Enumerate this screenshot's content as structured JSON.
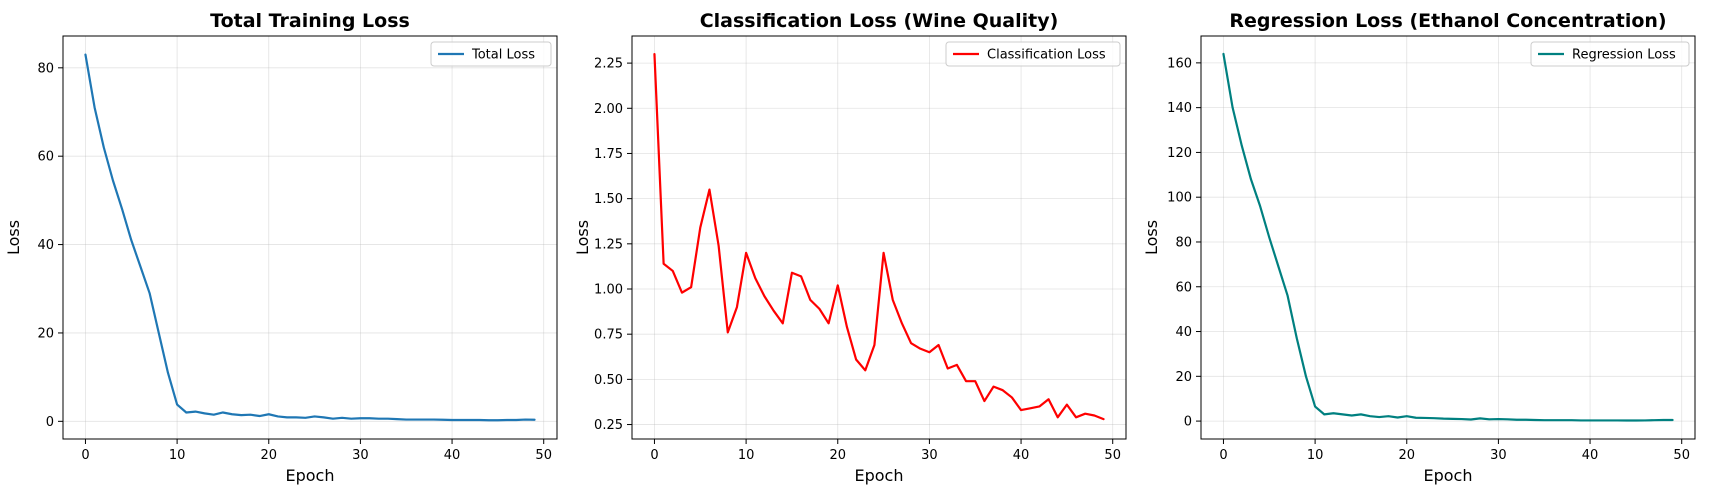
{
  "chart_data": [
    {
      "type": "line",
      "title": "Total Training Loss",
      "xlabel": "Epoch",
      "ylabel": "Loss",
      "xlim": [
        -2.45,
        51.45
      ],
      "ylim": [
        -4.0,
        87.2
      ],
      "xticks": [
        0,
        10,
        20,
        30,
        40,
        50
      ],
      "yticks": [
        0,
        20,
        40,
        60,
        80
      ],
      "grid": true,
      "legend_position": "top-right",
      "series": [
        {
          "name": "Total Loss",
          "color": "#1f77b4",
          "x": [
            0,
            1,
            2,
            3,
            4,
            5,
            6,
            7,
            8,
            9,
            10,
            11,
            12,
            13,
            14,
            15,
            16,
            17,
            18,
            19,
            20,
            21,
            22,
            23,
            24,
            25,
            26,
            27,
            28,
            29,
            30,
            31,
            32,
            33,
            34,
            35,
            36,
            37,
            38,
            39,
            40,
            41,
            42,
            43,
            44,
            45,
            46,
            47,
            48,
            49
          ],
          "values": [
            83.0,
            71.0,
            62.0,
            54.5,
            48.0,
            41.0,
            35.0,
            29.0,
            20.0,
            11.0,
            3.8,
            2.0,
            2.2,
            1.8,
            1.5,
            2.0,
            1.6,
            1.4,
            1.5,
            1.2,
            1.6,
            1.1,
            0.9,
            0.9,
            0.8,
            1.1,
            0.9,
            0.6,
            0.8,
            0.6,
            0.7,
            0.7,
            0.6,
            0.6,
            0.5,
            0.4,
            0.4,
            0.4,
            0.4,
            0.35,
            0.3,
            0.3,
            0.3,
            0.3,
            0.25,
            0.25,
            0.3,
            0.3,
            0.4,
            0.35
          ]
        }
      ]
    },
    {
      "type": "line",
      "title": "Classification Loss (Wine Quality)",
      "xlabel": "Epoch",
      "ylabel": "Loss",
      "xlim": [
        -2.45,
        51.45
      ],
      "ylim": [
        0.17,
        2.4
      ],
      "xticks": [
        0,
        10,
        20,
        30,
        40,
        50
      ],
      "yticks": [
        0.25,
        0.5,
        0.75,
        1.0,
        1.25,
        1.5,
        1.75,
        2.0,
        2.25
      ],
      "ytick_labels": [
        "0.25",
        "0.50",
        "0.75",
        "1.00",
        "1.25",
        "1.50",
        "1.75",
        "2.00",
        "2.25"
      ],
      "grid": true,
      "legend_position": "top-right",
      "series": [
        {
          "name": "Classification Loss",
          "color": "#ff0000",
          "x": [
            0,
            1,
            2,
            3,
            4,
            5,
            6,
            7,
            8,
            9,
            10,
            11,
            12,
            13,
            14,
            15,
            16,
            17,
            18,
            19,
            20,
            21,
            22,
            23,
            24,
            25,
            26,
            27,
            28,
            29,
            30,
            31,
            32,
            33,
            34,
            35,
            36,
            37,
            38,
            39,
            40,
            41,
            42,
            43,
            44,
            45,
            46,
            47,
            48,
            49
          ],
          "values": [
            2.3,
            1.14,
            1.1,
            0.98,
            1.01,
            1.34,
            1.55,
            1.24,
            0.76,
            0.9,
            1.2,
            1.06,
            0.96,
            0.88,
            0.81,
            1.09,
            1.07,
            0.94,
            0.89,
            0.81,
            1.02,
            0.79,
            0.61,
            0.55,
            0.69,
            1.2,
            0.94,
            0.81,
            0.7,
            0.67,
            0.65,
            0.69,
            0.56,
            0.58,
            0.49,
            0.49,
            0.38,
            0.46,
            0.44,
            0.4,
            0.33,
            0.34,
            0.35,
            0.39,
            0.29,
            0.36,
            0.29,
            0.31,
            0.3,
            0.28
          ]
        }
      ]
    },
    {
      "type": "line",
      "title": "Regression Loss (Ethanol Concentration)",
      "xlabel": "Epoch",
      "ylabel": "Loss",
      "xlim": [
        -2.45,
        51.45
      ],
      "ylim": [
        -8.0,
        172.0
      ],
      "xticks": [
        0,
        10,
        20,
        30,
        40,
        50
      ],
      "yticks": [
        0,
        20,
        40,
        60,
        80,
        100,
        120,
        140,
        160
      ],
      "grid": true,
      "legend_position": "top-right",
      "series": [
        {
          "name": "Regression Loss",
          "color": "#008080",
          "x": [
            0,
            1,
            2,
            3,
            4,
            5,
            6,
            7,
            8,
            9,
            10,
            11,
            12,
            13,
            14,
            15,
            16,
            17,
            18,
            19,
            20,
            21,
            22,
            23,
            24,
            25,
            26,
            27,
            28,
            29,
            30,
            31,
            32,
            33,
            34,
            35,
            36,
            37,
            38,
            39,
            40,
            41,
            42,
            43,
            44,
            45,
            46,
            47,
            48,
            49
          ],
          "values": [
            164.0,
            140.0,
            123.0,
            108.0,
            96.0,
            82.0,
            69.0,
            56.0,
            37.0,
            20.0,
            6.5,
            3.0,
            3.5,
            3.0,
            2.5,
            3.0,
            2.2,
            1.8,
            2.2,
            1.6,
            2.2,
            1.5,
            1.4,
            1.3,
            1.1,
            1.0,
            0.9,
            0.7,
            1.2,
            0.8,
            0.9,
            0.8,
            0.6,
            0.6,
            0.5,
            0.4,
            0.4,
            0.4,
            0.4,
            0.3,
            0.3,
            0.3,
            0.3,
            0.3,
            0.25,
            0.25,
            0.3,
            0.4,
            0.5,
            0.5
          ]
        }
      ]
    }
  ]
}
